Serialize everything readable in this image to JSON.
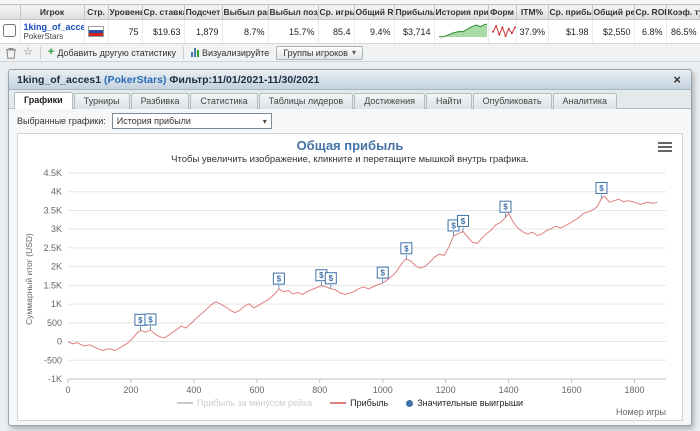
{
  "table": {
    "headers": [
      "Игрок",
      "Стр.",
      "Уровень",
      "Ср. ставка",
      "Подсчет",
      "Выбыл рано",
      "Выбыл поздно",
      "Ср. игры",
      "Общий ROI",
      "Прибыль",
      "История прибыли",
      "Форм",
      "ITM%",
      "Ср. прибыль",
      "Общий рей",
      "Ср. ROI",
      "Коэф. турб"
    ],
    "row": {
      "player": "1king_of_acces1",
      "site": "PokerStars",
      "country": "Russia",
      "level": "75",
      "avg_stake": "$19.63",
      "count": "1,879",
      "early_bust": "8.7%",
      "late_bust": "15.7%",
      "avg_games": "85.4",
      "total_roi": "9.4%",
      "profit": "$3,714",
      "profit_history": [
        0,
        -150,
        200,
        600,
        1000,
        1300,
        1500,
        1450,
        2000,
        2600,
        3100,
        3400,
        2900,
        3400,
        3714
      ],
      "form": [
        5,
        9,
        3,
        8,
        2,
        7,
        4,
        8
      ],
      "itm": "37.9%",
      "avg_profit": "$1.98",
      "total_rake": "$2,550",
      "avg_roi": "6.8%",
      "turbo": "86.5%"
    }
  },
  "toolbar": {
    "add_stat": "Добавить другую статистику",
    "visualize": "Визуализируйте",
    "groups": "Группы игроков"
  },
  "panel": {
    "title_name": "1king_of_acces1",
    "title_site": "(PokerStars)",
    "title_filter": "Фильтр:11/01/2021-11/30/2021",
    "close": "×",
    "tabs": [
      "Графики",
      "Турниры",
      "Разбивка",
      "Статистика",
      "Таблицы лидеров",
      "Достижения",
      "Найти",
      "Опубликовать",
      "Аналитика"
    ],
    "active_tab": 0
  },
  "graph_select": {
    "label": "Выбранные графики:",
    "value": "История прибыли"
  },
  "chart_data": {
    "type": "line",
    "title": "Общая прибыль",
    "subtitle": "Чтобы увеличить изображение, кликните и перетащите мышкой внутрь графика.",
    "xlabel": "Номер игры",
    "ylabel": "Суммарный итог (USD)",
    "xlim": [
      0,
      1900
    ],
    "ylim": [
      -1000,
      4500
    ],
    "x_ticks": [
      0,
      200,
      400,
      600,
      800,
      1000,
      1200,
      1400,
      1600,
      1800
    ],
    "y_ticks": [
      {
        "v": 4500,
        "label": "4.5K"
      },
      {
        "v": 4000,
        "label": "4K"
      },
      {
        "v": 3500,
        "label": "3.5K"
      },
      {
        "v": 3000,
        "label": "3K"
      },
      {
        "v": 2500,
        "label": "2.5K"
      },
      {
        "v": 2000,
        "label": "2K"
      },
      {
        "v": 1500,
        "label": "1.5K"
      },
      {
        "v": 1000,
        "label": "1K"
      },
      {
        "v": 500,
        "label": "500"
      },
      {
        "v": 0,
        "label": "0"
      },
      {
        "v": -500,
        "label": "-500"
      },
      {
        "v": -1000,
        "label": "-1K"
      }
    ],
    "series": [
      {
        "name": "Прибыль за минусом рейка",
        "color": "#cccccc",
        "visible": false,
        "points": []
      },
      {
        "name": "Прибыль",
        "color": "#e08080",
        "visible": true,
        "points": [
          [
            0,
            0
          ],
          [
            15,
            -60
          ],
          [
            30,
            -30
          ],
          [
            50,
            -120
          ],
          [
            70,
            -90
          ],
          [
            90,
            -170
          ],
          [
            110,
            -240
          ],
          [
            130,
            -190
          ],
          [
            150,
            -240
          ],
          [
            170,
            -140
          ],
          [
            190,
            -40
          ],
          [
            205,
            80
          ],
          [
            220,
            230
          ],
          [
            230,
            300
          ],
          [
            245,
            250
          ],
          [
            262,
            310
          ],
          [
            275,
            210
          ],
          [
            290,
            130
          ],
          [
            305,
            95
          ],
          [
            320,
            170
          ],
          [
            340,
            290
          ],
          [
            360,
            410
          ],
          [
            375,
            360
          ],
          [
            395,
            520
          ],
          [
            415,
            680
          ],
          [
            435,
            820
          ],
          [
            455,
            980
          ],
          [
            470,
            1060
          ],
          [
            485,
            1000
          ],
          [
            500,
            930
          ],
          [
            515,
            840
          ],
          [
            530,
            770
          ],
          [
            545,
            830
          ],
          [
            560,
            940
          ],
          [
            575,
            1010
          ],
          [
            590,
            900
          ],
          [
            605,
            960
          ],
          [
            620,
            1040
          ],
          [
            640,
            1140
          ],
          [
            655,
            1260
          ],
          [
            670,
            1400
          ],
          [
            685,
            1330
          ],
          [
            700,
            1360
          ],
          [
            715,
            1270
          ],
          [
            730,
            1310
          ],
          [
            745,
            1260
          ],
          [
            760,
            1330
          ],
          [
            775,
            1390
          ],
          [
            790,
            1440
          ],
          [
            805,
            1490
          ],
          [
            820,
            1460
          ],
          [
            835,
            1410
          ],
          [
            850,
            1380
          ],
          [
            865,
            1300
          ],
          [
            880,
            1260
          ],
          [
            895,
            1290
          ],
          [
            910,
            1340
          ],
          [
            925,
            1420
          ],
          [
            940,
            1460
          ],
          [
            955,
            1400
          ],
          [
            970,
            1470
          ],
          [
            985,
            1520
          ],
          [
            1000,
            1560
          ],
          [
            1015,
            1650
          ],
          [
            1030,
            1750
          ],
          [
            1045,
            1880
          ],
          [
            1060,
            2080
          ],
          [
            1075,
            2210
          ],
          [
            1090,
            2140
          ],
          [
            1105,
            2020
          ],
          [
            1120,
            1960
          ],
          [
            1135,
            2010
          ],
          [
            1150,
            2120
          ],
          [
            1165,
            2260
          ],
          [
            1180,
            2330
          ],
          [
            1195,
            2300
          ],
          [
            1210,
            2520
          ],
          [
            1225,
            2820
          ],
          [
            1240,
            2880
          ],
          [
            1255,
            2940
          ],
          [
            1270,
            2790
          ],
          [
            1285,
            2650
          ],
          [
            1300,
            2620
          ],
          [
            1315,
            2760
          ],
          [
            1330,
            2880
          ],
          [
            1345,
            2980
          ],
          [
            1360,
            3120
          ],
          [
            1375,
            3180
          ],
          [
            1390,
            3320
          ],
          [
            1400,
            3420
          ],
          [
            1415,
            3180
          ],
          [
            1430,
            3020
          ],
          [
            1445,
            2930
          ],
          [
            1460,
            2870
          ],
          [
            1475,
            2920
          ],
          [
            1490,
            2830
          ],
          [
            1505,
            2870
          ],
          [
            1520,
            2960
          ],
          [
            1535,
            3010
          ],
          [
            1550,
            3080
          ],
          [
            1565,
            3030
          ],
          [
            1580,
            3090
          ],
          [
            1600,
            3190
          ],
          [
            1620,
            3290
          ],
          [
            1640,
            3430
          ],
          [
            1660,
            3480
          ],
          [
            1680,
            3590
          ],
          [
            1695,
            3820
          ],
          [
            1705,
            3880
          ],
          [
            1720,
            3720
          ],
          [
            1735,
            3760
          ],
          [
            1750,
            3800
          ],
          [
            1765,
            3730
          ],
          [
            1780,
            3760
          ],
          [
            1800,
            3720
          ],
          [
            1820,
            3660
          ],
          [
            1840,
            3720
          ],
          [
            1860,
            3690
          ],
          [
            1872,
            3714
          ]
        ]
      }
    ],
    "markers": {
      "name": "Значительные выигрыши",
      "color": "#3f72a8",
      "symbol": "$",
      "points": [
        [
          230,
          300
        ],
        [
          262,
          310
        ],
        [
          670,
          1400
        ],
        [
          805,
          1490
        ],
        [
          835,
          1410
        ],
        [
          1000,
          1560
        ],
        [
          1075,
          2210
        ],
        [
          1225,
          2820
        ],
        [
          1255,
          2940
        ],
        [
          1390,
          3320
        ],
        [
          1695,
          3820
        ]
      ]
    },
    "legend": [
      {
        "label": "Прибыль за минусом рейка",
        "swatch": "line",
        "color": "#cccccc",
        "disabled": true
      },
      {
        "label": "Прибыль",
        "swatch": "line",
        "color": "#e08080",
        "disabled": false
      },
      {
        "label": "Значительные выигрыши",
        "swatch": "dot",
        "color": "#3f72a8",
        "disabled": false
      }
    ]
  }
}
